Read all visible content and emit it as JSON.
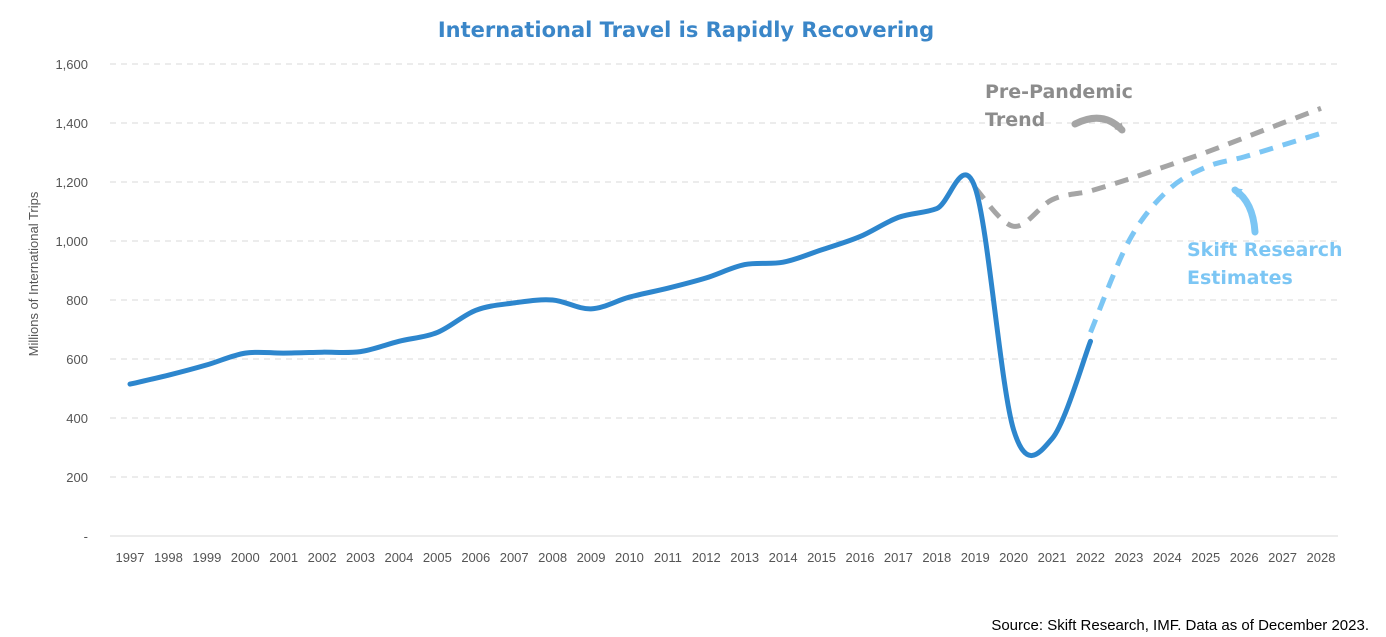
{
  "chart_data": {
    "type": "line",
    "title": "International Travel is Rapidly Recovering",
    "ylabel": "Millions of International Trips",
    "xlabel": "",
    "ylim": [
      0,
      1600
    ],
    "yticks": [
      0,
      200,
      400,
      600,
      800,
      1000,
      1200,
      1400,
      1600
    ],
    "ytick_labels": [
      "-",
      "200",
      "400",
      "600",
      "800",
      "1,000",
      "1,200",
      "1,400",
      "1,600"
    ],
    "x": [
      "1997",
      "1998",
      "1999",
      "2000",
      "2001",
      "2002",
      "2003",
      "2004",
      "2005",
      "2006",
      "2007",
      "2008",
      "2009",
      "2010",
      "2011",
      "2012",
      "2013",
      "2014",
      "2015",
      "2016",
      "2017",
      "2018",
      "2019",
      "2020",
      "2021",
      "2022",
      "2023",
      "2024",
      "2025",
      "2026",
      "2027",
      "2028"
    ],
    "grid": "horizontal dashed",
    "series": [
      {
        "key": "actual",
        "style": "solid",
        "color": "#2d86cd",
        "x": [
          "1997",
          "1998",
          "1999",
          "2000",
          "2001",
          "2002",
          "2003",
          "2004",
          "2005",
          "2006",
          "2007",
          "2008",
          "2009",
          "2010",
          "2011",
          "2012",
          "2013",
          "2014",
          "2015",
          "2016",
          "2017",
          "2018",
          "2019",
          "2020",
          "2021",
          "2022"
        ],
        "values": [
          515,
          545,
          580,
          620,
          620,
          623,
          625,
          660,
          690,
          765,
          790,
          800,
          770,
          810,
          840,
          875,
          920,
          928,
          970,
          1015,
          1080,
          1110,
          1180,
          360,
          330,
          660
        ]
      },
      {
        "key": "pre_pandemic",
        "name": "Pre-Pandemic Trend",
        "style": "dashed",
        "color": "#a5a5a5",
        "x": [
          "2019",
          "2020",
          "2021",
          "2022",
          "2023",
          "2024",
          "2025",
          "2026",
          "2027",
          "2028"
        ],
        "values": [
          1180,
          1050,
          1140,
          1170,
          1210,
          1255,
          1300,
          1350,
          1400,
          1450
        ]
      },
      {
        "key": "estimates",
        "name": "Skift Research Estimates",
        "style": "dashed",
        "color": "#7cc6f4",
        "x": [
          "2022",
          "2023",
          "2024",
          "2025",
          "2026",
          "2027",
          "2028"
        ],
        "values": [
          690,
          1000,
          1170,
          1250,
          1285,
          1325,
          1365
        ]
      }
    ],
    "annotations": [
      {
        "key": "pre_pandemic_label",
        "lines": [
          "Pre-Pandemic",
          "Trend"
        ],
        "color": "#8c8c8c"
      },
      {
        "key": "estimates_label",
        "lines": [
          "Skift Research",
          "Estimates"
        ],
        "color": "#7cc6f4"
      }
    ],
    "source": "Source: Skift Research, IMF. Data as of December 2023."
  }
}
